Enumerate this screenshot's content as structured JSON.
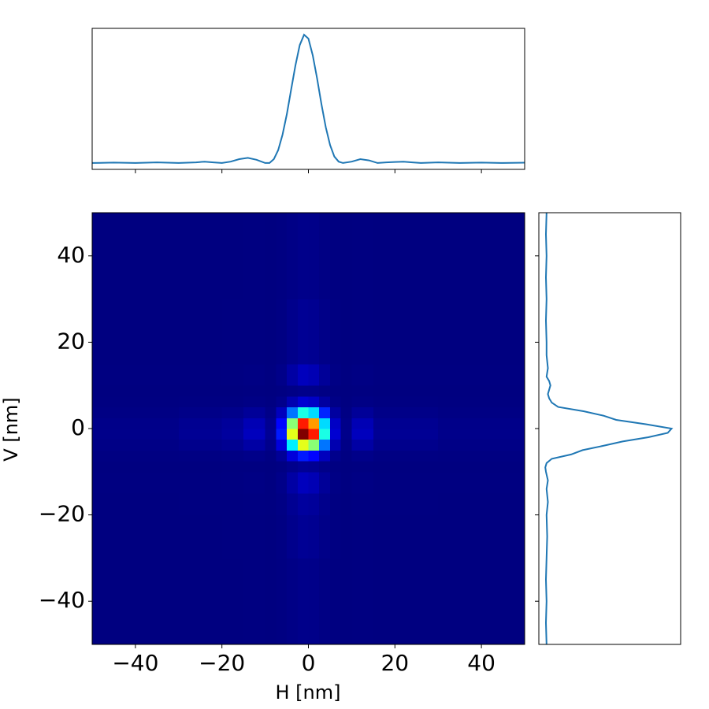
{
  "chart_data": {
    "type": "heatmap",
    "xlabel": "H [nm]",
    "ylabel": "V [nm]",
    "colormap": "jet",
    "xlim": [
      -50,
      50
    ],
    "ylim": [
      -50,
      50
    ],
    "xticks": [
      {
        "value": -40,
        "label": "−40"
      },
      {
        "value": -20,
        "label": "−20"
      },
      0,
      20,
      40
    ],
    "yticks": [
      {
        "value": -40,
        "label": "−40"
      },
      {
        "value": -20,
        "label": "−20"
      },
      0,
      20,
      40
    ],
    "x_edges": [
      -50,
      -30,
      -20,
      -15,
      -10,
      -7.5,
      -5,
      -2.5,
      0,
      2.5,
      5,
      7.5,
      10,
      15,
      20,
      30,
      50
    ],
    "y_edges": [
      -50,
      -30,
      -20,
      -15,
      -10,
      -7.5,
      -5,
      -2.5,
      0,
      2.5,
      5,
      7.5,
      10,
      15,
      20,
      30,
      50
    ],
    "z": [
      [
        0.0,
        0.0,
        0.0,
        0.001,
        0.0,
        0.002,
        0.006,
        0.01,
        0.009,
        0.004,
        0.001,
        0.0,
        0.001,
        0.0,
        0.0,
        0.0
      ],
      [
        0.0,
        0.0,
        0.001,
        0.001,
        0.0,
        0.003,
        0.012,
        0.02,
        0.017,
        0.008,
        0.002,
        0.0,
        0.001,
        0.0,
        0.0,
        0.0
      ],
      [
        0.0,
        0.001,
        0.001,
        0.002,
        0.001,
        0.005,
        0.018,
        0.03,
        0.026,
        0.012,
        0.002,
        0.0,
        0.002,
        0.001,
        0.001,
        0.0
      ],
      [
        0.001,
        0.001,
        0.002,
        0.004,
        0.001,
        0.009,
        0.036,
        0.06,
        0.051,
        0.024,
        0.005,
        0.001,
        0.004,
        0.001,
        0.001,
        0.001
      ],
      [
        0.0,
        0.0,
        0.001,
        0.001,
        0.0,
        0.003,
        0.012,
        0.02,
        0.017,
        0.008,
        0.002,
        0.0,
        0.001,
        0.0,
        0.0,
        0.0
      ],
      [
        0.002,
        0.003,
        0.005,
        0.009,
        0.003,
        0.023,
        0.09,
        0.15,
        0.128,
        0.06,
        0.012,
        0.002,
        0.009,
        0.003,
        0.003,
        0.002
      ],
      [
        0.006,
        0.012,
        0.018,
        0.036,
        0.012,
        0.09,
        0.36,
        0.6,
        0.51,
        0.24,
        0.048,
        0.006,
        0.036,
        0.012,
        0.012,
        0.006
      ],
      [
        0.01,
        0.02,
        0.03,
        0.06,
        0.02,
        0.15,
        0.6,
        1.0,
        0.85,
        0.4,
        0.08,
        0.01,
        0.06,
        0.02,
        0.02,
        0.01
      ],
      [
        0.009,
        0.017,
        0.026,
        0.051,
        0.017,
        0.128,
        0.51,
        0.85,
        0.723,
        0.34,
        0.068,
        0.009,
        0.051,
        0.017,
        0.017,
        0.009
      ],
      [
        0.004,
        0.008,
        0.012,
        0.024,
        0.008,
        0.06,
        0.24,
        0.4,
        0.34,
        0.16,
        0.032,
        0.004,
        0.024,
        0.008,
        0.008,
        0.004
      ],
      [
        0.001,
        0.002,
        0.002,
        0.005,
        0.002,
        0.012,
        0.048,
        0.08,
        0.068,
        0.032,
        0.006,
        0.001,
        0.005,
        0.002,
        0.002,
        0.001
      ],
      [
        0.0,
        0.0,
        0.0,
        0.001,
        0.0,
        0.002,
        0.006,
        0.01,
        0.009,
        0.004,
        0.001,
        0.0,
        0.001,
        0.0,
        0.0,
        0.0
      ],
      [
        0.001,
        0.001,
        0.002,
        0.004,
        0.001,
        0.009,
        0.036,
        0.06,
        0.051,
        0.024,
        0.005,
        0.001,
        0.004,
        0.001,
        0.001,
        0.001
      ],
      [
        0.0,
        0.0,
        0.001,
        0.001,
        0.0,
        0.003,
        0.012,
        0.02,
        0.017,
        0.008,
        0.002,
        0.0,
        0.001,
        0.0,
        0.0,
        0.0
      ],
      [
        0.0,
        0.0,
        0.001,
        0.001,
        0.0,
        0.003,
        0.012,
        0.02,
        0.017,
        0.008,
        0.002,
        0.0,
        0.001,
        0.0,
        0.0,
        0.0
      ],
      [
        0.0,
        0.0,
        0.0,
        0.001,
        0.0,
        0.002,
        0.006,
        0.01,
        0.009,
        0.004,
        0.001,
        0.0,
        0.001,
        0.0,
        0.0,
        0.0
      ]
    ],
    "top_profile": {
      "color": "#1f77b4",
      "lim": [
        -0.05,
        1.05
      ],
      "x": [
        -50,
        -45,
        -40,
        -35,
        -30,
        -26,
        -24,
        -22,
        -20,
        -18,
        -16,
        -14,
        -12,
        -10,
        -9,
        -8,
        -7,
        -6,
        -5,
        -4,
        -3,
        -2,
        -1,
        0,
        1,
        2,
        3,
        4,
        5,
        6,
        7,
        8,
        10,
        12,
        14,
        16,
        18,
        20,
        22,
        24,
        26,
        30,
        35,
        40,
        45,
        50
      ],
      "values": [
        0,
        0.003,
        0,
        0.005,
        0,
        0.005,
        0.01,
        0.005,
        0,
        0.01,
        0.03,
        0.04,
        0.025,
        0,
        0,
        0.03,
        0.1,
        0.22,
        0.38,
        0.57,
        0.76,
        0.92,
        1.0,
        0.97,
        0.84,
        0.66,
        0.46,
        0.28,
        0.14,
        0.05,
        0.01,
        0,
        0.01,
        0.03,
        0.02,
        0,
        0.005,
        0.008,
        0.01,
        0.005,
        0,
        0.005,
        0,
        0.003,
        0,
        0.002
      ]
    },
    "side_profile": {
      "color": "#1f77b4",
      "lim": [
        -0.05,
        1.05
      ],
      "y": [
        -50,
        -45,
        -40,
        -35,
        -30,
        -25,
        -20,
        -17,
        -14,
        -12,
        -10,
        -9,
        -8,
        -7,
        -6,
        -5,
        -4,
        -3,
        -2,
        -1,
        0,
        1,
        2,
        3,
        4,
        5,
        6,
        7,
        8,
        10,
        11,
        12,
        14,
        17,
        20,
        25,
        30,
        35,
        40,
        45,
        50
      ],
      "values": [
        0.01,
        0.005,
        0.01,
        0.005,
        0.01,
        0.015,
        0.01,
        0.02,
        0.01,
        0.02,
        0.005,
        0,
        0.01,
        0.05,
        0.2,
        0.29,
        0.45,
        0.6,
        0.8,
        0.95,
        0.98,
        0.78,
        0.55,
        0.45,
        0.3,
        0.1,
        0.05,
        0.03,
        0.02,
        0.04,
        0.03,
        0.01,
        0.02,
        0.01,
        0.01,
        0.005,
        0.01,
        0.005,
        0.01,
        0.005,
        0.01
      ]
    }
  }
}
